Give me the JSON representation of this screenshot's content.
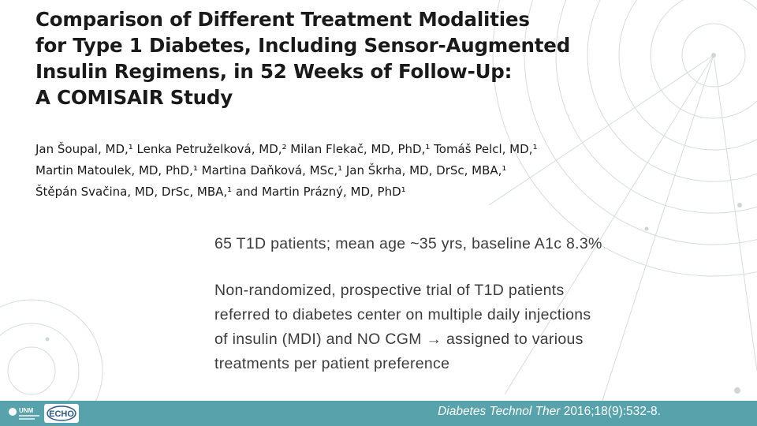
{
  "title": {
    "lines": [
      "Comparison of Different Treatment Modalities",
      "for Type 1 Diabetes, Including Sensor-Augmented",
      "Insulin Regimens, in 52 Weeks of Follow-Up:",
      "A COMISAIR Study"
    ]
  },
  "authors": {
    "lines": [
      "Jan Šoupal, MD,¹ Lenka Petruželková, MD,² Milan Flekač, MD, PhD,¹ Tomáš Pelcl, MD,¹",
      "Martin Matoulek, MD, PhD,¹ Martina Daňková, MSc,¹ Jan Škrha, MD, DrSc, MBA,¹",
      "Štěpán Svačina, MD, DrSc, MBA,¹ and Martin Prázný, MD, PhD¹"
    ]
  },
  "content": {
    "point1": "65 T1D patients; mean age ~35 yrs, baseline A1c 8.3%",
    "point2_lines": [
      "Non-randomized, prospective trial of T1D patients",
      "referred to diabetes center on multiple daily injections",
      "of insulin (MDI) and NO CGM → assigned to various",
      "treatments per patient preference"
    ]
  },
  "footer": {
    "journal": "Diabetes Technol Ther",
    "citation_rest": " 2016;18(9):532-8.",
    "logo_echo_text": "ECHO",
    "logo_unm_text": "UNM"
  },
  "colors": {
    "footer_bg": "#58a3ab",
    "text": "#1a1a1a",
    "body_text": "#3c3c3c"
  }
}
